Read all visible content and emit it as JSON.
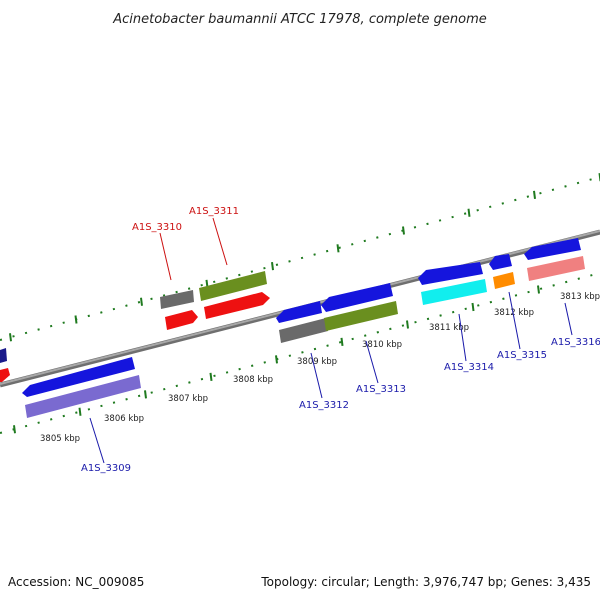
{
  "title": "Acinetobacter baumannii ATCC 17978, complete genome",
  "footer": {
    "accession": "Accession: NC_009085",
    "summary": "Topology: circular; Length: 3,976,747 bp; Genes: 3,435"
  },
  "colors": {
    "backbone": "#8a8a8a",
    "tick_minor": "#1f7a1f",
    "forward_label": "#cc1111",
    "reverse_label": "#1a1aaa"
  },
  "ticks": [
    {
      "label": "3805 kbp"
    },
    {
      "label": "3806 kbp"
    },
    {
      "label": "3807 kbp"
    },
    {
      "label": "3808 kbp"
    },
    {
      "label": "3809 kbp"
    },
    {
      "label": "3810 kbp"
    },
    {
      "label": "3811 kbp"
    },
    {
      "label": "3812 kbp"
    },
    {
      "label": "3813 kbp"
    }
  ],
  "gene_labels": [
    {
      "id": "A1S_3309",
      "strand": "reverse"
    },
    {
      "id": "A1S_3310",
      "strand": "forward"
    },
    {
      "id": "A1S_3311",
      "strand": "forward"
    },
    {
      "id": "A1S_3312",
      "strand": "reverse"
    },
    {
      "id": "A1S_3313",
      "strand": "reverse"
    },
    {
      "id": "A1S_3314",
      "strand": "reverse"
    },
    {
      "id": "A1S_3315",
      "strand": "reverse"
    },
    {
      "id": "A1S_3316",
      "strand": "reverse"
    }
  ]
}
